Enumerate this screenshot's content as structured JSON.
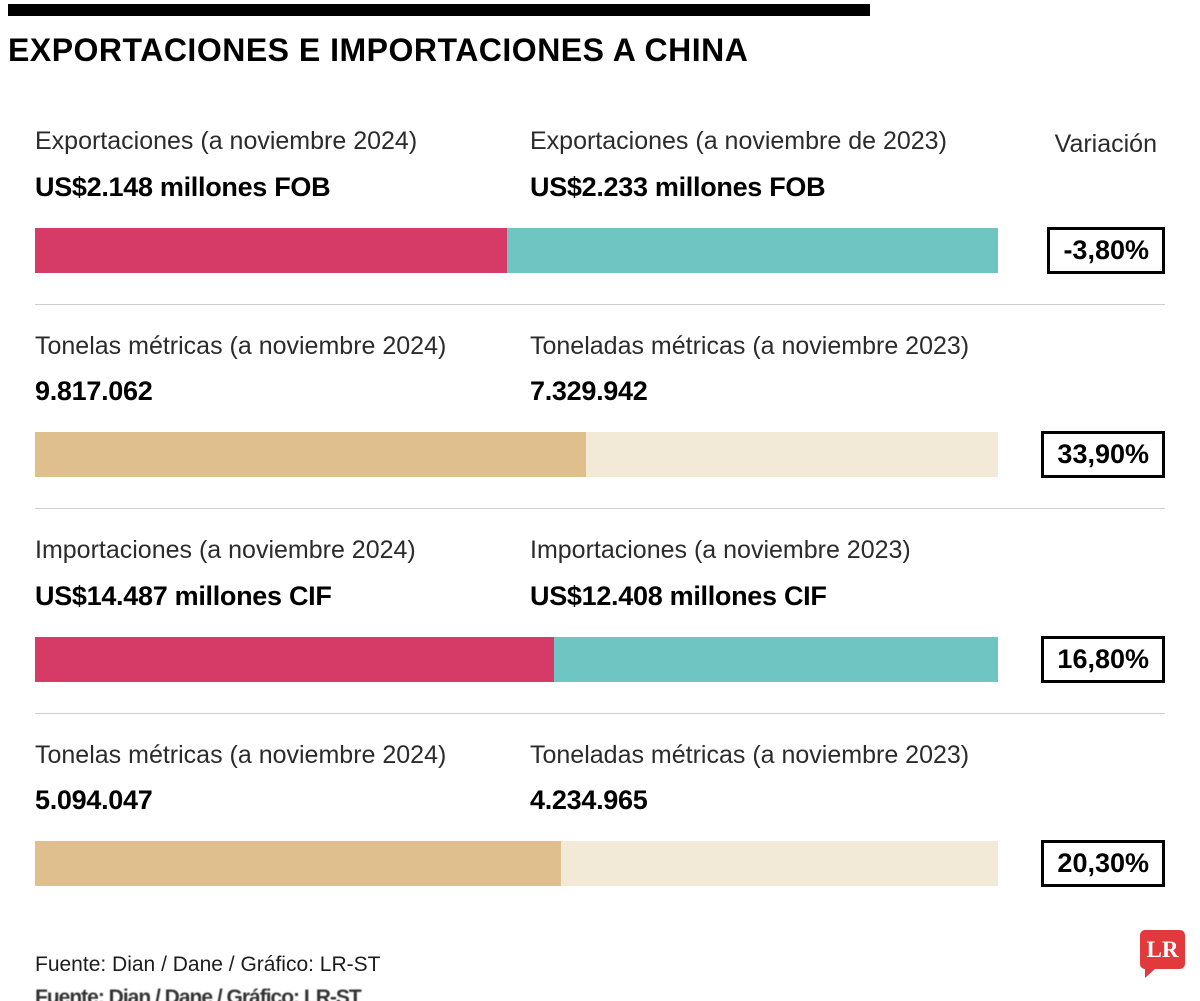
{
  "title": "EXPORTACIONES E IMPORTACIONES A CHINA",
  "variation_header": "Variación",
  "footer": "Fuente: Dian / Dane / Gráfico: LR-ST",
  "logo_text": "LR",
  "colors": {
    "pink": "#d63a66",
    "teal": "#6ec5c2",
    "tan": "#debf8d",
    "cream": "#f2e9d7",
    "logo_red": "#e23a3c"
  },
  "chart_data": {
    "type": "bar",
    "title": "EXPORTACIONES E IMPORTACIONES A CHINA",
    "legend_position": "none",
    "grid": false,
    "rows": [
      {
        "label_2024": "Exportaciones (a noviembre 2024)",
        "display_2024": "US$2.148 millones FOB",
        "value_2024": 2148,
        "label_2023": "Exportaciones (a noviembre de 2023)",
        "display_2023": "US$2.233 millones FOB",
        "value_2023": 2233,
        "variation": "-3,80%",
        "palette": "pink-teal"
      },
      {
        "label_2024": "Tonelas métricas (a noviembre 2024)",
        "display_2024": "9.817.062",
        "value_2024": 9817062,
        "label_2023": "Toneladas métricas (a noviembre 2023)",
        "display_2023": "7.329.942",
        "value_2023": 7329942,
        "variation": "33,90%",
        "palette": "tan-cream"
      },
      {
        "label_2024": "Importaciones (a noviembre 2024)",
        "display_2024": "US$14.487 millones CIF",
        "value_2024": 14487,
        "label_2023": "Importaciones (a noviembre 2023)",
        "display_2023": "US$12.408 millones CIF",
        "value_2023": 12408,
        "variation": "16,80%",
        "palette": "pink-teal"
      },
      {
        "label_2024": "Tonelas métricas (a noviembre 2024)",
        "display_2024": "5.094.047",
        "value_2024": 5094047,
        "label_2023": "Toneladas métricas (a noviembre 2023)",
        "display_2023": "4.234.965",
        "value_2023": 4234965,
        "variation": "20,30%",
        "palette": "tan-cream"
      }
    ]
  }
}
